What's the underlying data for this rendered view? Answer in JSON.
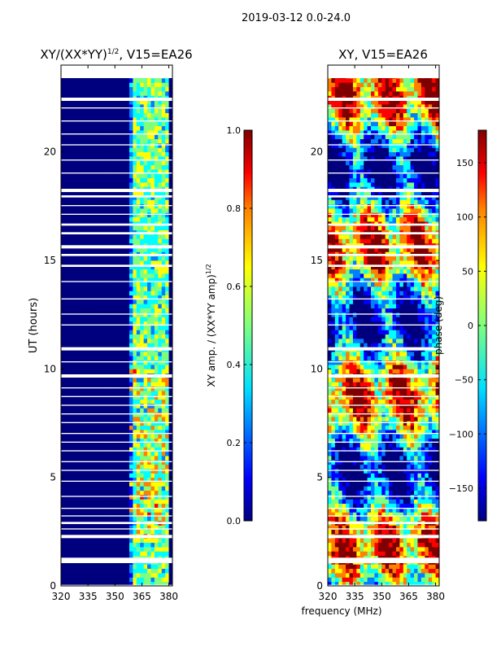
{
  "suptitle": "2019-03-12 0.0-24.0",
  "shared_xlabel": "frequency (MHz)",
  "colormap": [
    "#00007f",
    "#0000ff",
    "#007fff",
    "#00ffff",
    "#7fff7f",
    "#ffff00",
    "#ff7f00",
    "#ff0000",
    "#7f0000"
  ],
  "chart_data": [
    {
      "type": "heatmap",
      "title_main": "XY/(XX*YY)",
      "title_sup": "1/2",
      "title_rest": ", V15=EA26",
      "xlabel": "",
      "ylabel": "UT (hours)",
      "xlim": [
        320,
        382
      ],
      "ylim": [
        0,
        24
      ],
      "xticks": [
        320,
        335,
        350,
        365,
        380
      ],
      "yticks": [
        0,
        5,
        10,
        15,
        20
      ],
      "colorbar": {
        "label_main": "XY amp. / (XX*YY amp)",
        "label_sup": "1/2",
        "range": [
          0.0,
          1.0
        ],
        "ticks": [
          0.0,
          0.2,
          0.4,
          0.6,
          0.8,
          1.0
        ],
        "tick_labels": [
          "0.0",
          "0.2",
          "0.4",
          "0.6",
          "0.8",
          "1.0"
        ]
      },
      "active_band_mhz": [
        359,
        380
      ],
      "bright_columns_mhz": [
        361,
        363,
        366,
        368,
        370,
        372,
        375,
        377,
        379
      ]
    },
    {
      "type": "heatmap",
      "title_main": "XY, V15=EA26",
      "xlabel": "frequency (MHz)",
      "ylabel": "",
      "xlim": [
        320,
        382
      ],
      "ylim": [
        0,
        24
      ],
      "xticks": [
        320,
        335,
        350,
        365,
        380
      ],
      "yticks": [
        0,
        5,
        10,
        15,
        20
      ],
      "colorbar": {
        "label_main": "phase (deg)",
        "range": [
          -180,
          180
        ],
        "ticks": [
          -150,
          -100,
          -50,
          0,
          50,
          100,
          150
        ],
        "tick_labels": [
          "−150",
          "−100",
          "−50",
          "0",
          "50",
          "100",
          "150"
        ]
      }
    }
  ],
  "flagged_hour_ranges": [
    [
      0.0,
      0.05
    ],
    [
      1.05,
      1.3
    ],
    [
      2.2,
      2.35
    ],
    [
      2.6,
      2.65
    ],
    [
      2.85,
      2.95
    ],
    [
      3.2,
      3.25
    ],
    [
      3.55,
      3.6
    ],
    [
      4.1,
      4.15
    ],
    [
      4.8,
      4.85
    ],
    [
      5.3,
      5.35
    ],
    [
      5.7,
      5.75
    ],
    [
      6.2,
      6.25
    ],
    [
      6.6,
      6.65
    ],
    [
      7.0,
      7.05
    ],
    [
      7.5,
      7.55
    ],
    [
      7.9,
      7.95
    ],
    [
      8.3,
      8.35
    ],
    [
      8.7,
      8.75
    ],
    [
      9.1,
      9.15
    ],
    [
      9.6,
      9.75
    ],
    [
      10.3,
      10.35
    ],
    [
      10.85,
      11.0
    ],
    [
      12.0,
      12.05
    ],
    [
      12.5,
      12.55
    ],
    [
      13.2,
      13.25
    ],
    [
      14.0,
      14.05
    ],
    [
      14.7,
      14.8
    ],
    [
      15.2,
      15.3
    ],
    [
      15.55,
      15.7
    ],
    [
      16.2,
      16.3
    ],
    [
      16.6,
      16.7
    ],
    [
      17.1,
      17.15
    ],
    [
      17.5,
      17.55
    ],
    [
      17.9,
      18.0
    ],
    [
      18.15,
      18.3
    ],
    [
      19.0,
      19.05
    ],
    [
      19.6,
      19.65
    ],
    [
      20.3,
      20.35
    ],
    [
      20.8,
      20.85
    ],
    [
      21.4,
      21.45
    ],
    [
      22.0,
      22.05
    ],
    [
      22.35,
      22.5
    ],
    [
      23.4,
      24.0
    ]
  ]
}
